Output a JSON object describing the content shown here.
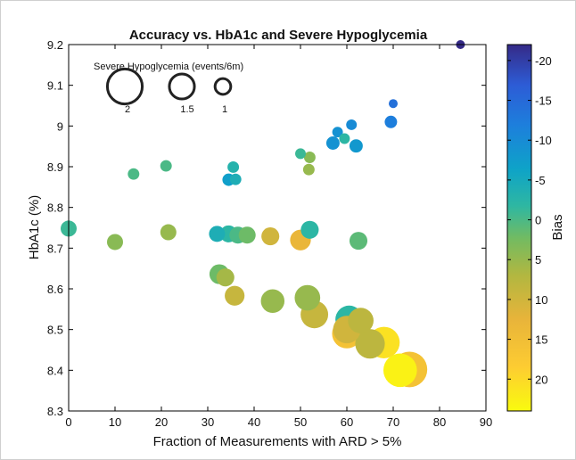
{
  "chart_data": {
    "type": "scatter",
    "title": "Accuracy vs. HbA1c and Severe Hypoglycemia",
    "xlabel": "Fraction of Measurements with ARD > 5%",
    "ylabel": "HbA1c (%)",
    "xlim": [
      0,
      90
    ],
    "ylim": [
      8.3,
      9.2
    ],
    "xticks": [
      "0",
      "10",
      "20",
      "30",
      "40",
      "50",
      "60",
      "70",
      "80",
      "90"
    ],
    "yticks": [
      "8.3",
      "8.4",
      "8.5",
      "8.6",
      "8.7",
      "8.8",
      "8.9",
      "9",
      "9.1",
      "9.2"
    ],
    "grid": false,
    "size_legend": {
      "title": "Severe Hypoglycemia (events/6m)",
      "entries": [
        {
          "label": "2",
          "value": 2
        },
        {
          "label": "1.5",
          "value": 1.5
        },
        {
          "label": "1",
          "value": 1
        }
      ]
    },
    "colorbar": {
      "label": "Bias",
      "range": [
        -22,
        24
      ],
      "ticks": [
        "-20",
        "-15",
        "-10",
        "-5",
        "0",
        "5",
        "10",
        "15",
        "20"
      ],
      "tick_values": [
        -20,
        -15,
        -10,
        -5,
        0,
        5,
        10,
        15,
        20
      ]
    },
    "points": [
      {
        "x": 84.5,
        "y": 9.2,
        "size": 0.6,
        "bias": -22
      },
      {
        "x": 70.0,
        "y": 9.055,
        "size": 0.6,
        "bias": -14
      },
      {
        "x": 69.5,
        "y": 9.01,
        "size": 0.8,
        "bias": -12
      },
      {
        "x": 61.0,
        "y": 9.003,
        "size": 0.7,
        "bias": -10
      },
      {
        "x": 58.0,
        "y": 8.985,
        "size": 0.7,
        "bias": -9
      },
      {
        "x": 57.0,
        "y": 8.958,
        "size": 0.85,
        "bias": -9
      },
      {
        "x": 59.5,
        "y": 8.969,
        "size": 0.7,
        "bias": -2
      },
      {
        "x": 62.0,
        "y": 8.951,
        "size": 0.85,
        "bias": -8
      },
      {
        "x": 50.0,
        "y": 8.932,
        "size": 0.7,
        "bias": -1
      },
      {
        "x": 52.0,
        "y": 8.923,
        "size": 0.75,
        "bias": 4
      },
      {
        "x": 51.8,
        "y": 8.893,
        "size": 0.75,
        "bias": 5
      },
      {
        "x": 21.0,
        "y": 8.902,
        "size": 0.75,
        "bias": 0
      },
      {
        "x": 14.0,
        "y": 8.882,
        "size": 0.75,
        "bias": 0
      },
      {
        "x": 35.5,
        "y": 8.899,
        "size": 0.75,
        "bias": -3
      },
      {
        "x": 34.5,
        "y": 8.868,
        "size": 0.8,
        "bias": -7
      },
      {
        "x": 36.0,
        "y": 8.869,
        "size": 0.75,
        "bias": -4
      },
      {
        "x": 0.0,
        "y": 8.748,
        "size": 1.0,
        "bias": -1
      },
      {
        "x": 10.0,
        "y": 8.715,
        "size": 1.0,
        "bias": 4
      },
      {
        "x": 21.5,
        "y": 8.739,
        "size": 1.0,
        "bias": 5
      },
      {
        "x": 32.0,
        "y": 8.735,
        "size": 1.0,
        "bias": -4
      },
      {
        "x": 34.5,
        "y": 8.735,
        "size": 1.05,
        "bias": -2
      },
      {
        "x": 36.5,
        "y": 8.732,
        "size": 1.05,
        "bias": 0
      },
      {
        "x": 38.5,
        "y": 8.732,
        "size": 1.05,
        "bias": 2
      },
      {
        "x": 43.5,
        "y": 8.729,
        "size": 1.1,
        "bias": 10
      },
      {
        "x": 50.0,
        "y": 8.72,
        "size": 1.25,
        "bias": 13
      },
      {
        "x": 52.0,
        "y": 8.745,
        "size": 1.1,
        "bias": -2
      },
      {
        "x": 62.5,
        "y": 8.718,
        "size": 1.1,
        "bias": 1
      },
      {
        "x": 32.5,
        "y": 8.636,
        "size": 1.2,
        "bias": 2
      },
      {
        "x": 33.8,
        "y": 8.628,
        "size": 1.1,
        "bias": 6
      },
      {
        "x": 35.8,
        "y": 8.583,
        "size": 1.2,
        "bias": 9
      },
      {
        "x": 44.0,
        "y": 8.57,
        "size": 1.4,
        "bias": 5
      },
      {
        "x": 51.5,
        "y": 8.578,
        "size": 1.5,
        "bias": 5
      },
      {
        "x": 53.0,
        "y": 8.537,
        "size": 1.6,
        "bias": 9
      },
      {
        "x": 60.5,
        "y": 8.525,
        "size": 1.6,
        "bias": -2
      },
      {
        "x": 63.0,
        "y": 8.522,
        "size": 1.5,
        "bias": 8
      },
      {
        "x": 60.0,
        "y": 8.49,
        "size": 1.7,
        "bias": 16
      },
      {
        "x": 60.0,
        "y": 8.5,
        "size": 1.6,
        "bias": 10
      },
      {
        "x": 65.0,
        "y": 8.465,
        "size": 1.7,
        "bias": 8
      },
      {
        "x": 73.5,
        "y": 8.402,
        "size": 2.0,
        "bias": 16
      },
      {
        "x": 68.0,
        "y": 8.468,
        "size": 1.8,
        "bias": 21
      },
      {
        "x": 71.5,
        "y": 8.4,
        "size": 1.9,
        "bias": 23
      }
    ]
  }
}
